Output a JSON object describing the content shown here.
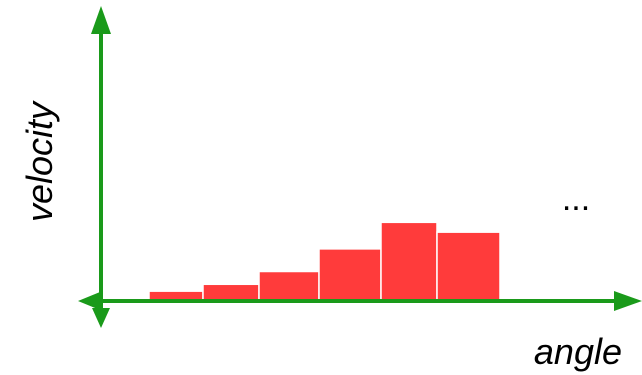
{
  "chart_data": {
    "type": "bar",
    "xlabel": "angle",
    "ylabel": "velocity",
    "annotation": "...",
    "values": [
      1.0,
      1.7,
      3.0,
      5.3,
      8.0,
      7.0
    ],
    "ylim": [
      0,
      30
    ],
    "grid": false,
    "colors": {
      "bar": "#ff3b3b",
      "axis": "#1a9a1a"
    }
  }
}
